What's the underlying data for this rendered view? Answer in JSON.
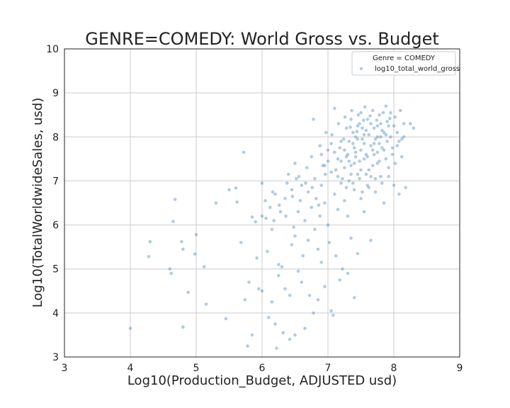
{
  "chart_data": {
    "type": "scatter",
    "title": "GENRE=COMEDY: World Gross vs. Budget",
    "xlabel": "Log10(Production_Budget, ADJUSTED usd)",
    "ylabel": "Log10(TotalWorldwideSales, usd)",
    "xlim": [
      3,
      9
    ],
    "ylim": [
      3,
      10
    ],
    "xticks": [
      "3",
      "4",
      "5",
      "6",
      "7",
      "8",
      "9"
    ],
    "yticks": [
      "3",
      "4",
      "5",
      "6",
      "7",
      "8",
      "9",
      "10"
    ],
    "grid": true,
    "legend": {
      "placement": "top-right",
      "title": "Genre = COMEDY",
      "entries": [
        "log10_total_world_gross"
      ]
    },
    "colors": {
      "point": "#3b7dbb",
      "grid": "#cccccc"
    },
    "series": [
      {
        "name": "log10_total_world_gross",
        "points": [
          [
            4.0,
            3.65
          ],
          [
            4.28,
            5.28
          ],
          [
            4.3,
            5.62
          ],
          [
            4.6,
            5.0
          ],
          [
            4.62,
            4.9
          ],
          [
            4.65,
            6.08
          ],
          [
            4.68,
            6.58
          ],
          [
            4.78,
            5.62
          ],
          [
            4.8,
            3.68
          ],
          [
            4.8,
            5.45
          ],
          [
            4.88,
            4.47
          ],
          [
            4.98,
            5.34
          ],
          [
            5.0,
            5.78
          ],
          [
            5.12,
            5.05
          ],
          [
            5.15,
            4.2
          ],
          [
            5.3,
            6.5
          ],
          [
            5.45,
            3.87
          ],
          [
            5.5,
            6.8
          ],
          [
            5.6,
            6.84
          ],
          [
            5.62,
            6.52
          ],
          [
            5.68,
            5.6
          ],
          [
            5.72,
            7.65
          ],
          [
            5.74,
            4.3
          ],
          [
            5.78,
            3.25
          ],
          [
            5.8,
            4.7
          ],
          [
            5.85,
            6.18
          ],
          [
            5.85,
            3.5
          ],
          [
            5.9,
            6.07
          ],
          [
            5.92,
            5.25
          ],
          [
            5.95,
            4.55
          ],
          [
            6.0,
            6.2
          ],
          [
            6.0,
            4.5
          ],
          [
            6.0,
            6.95
          ],
          [
            6.05,
            6.55
          ],
          [
            6.08,
            5.4
          ],
          [
            6.1,
            3.9
          ],
          [
            6.12,
            6.4
          ],
          [
            6.15,
            4.25
          ],
          [
            6.15,
            5.9
          ],
          [
            6.18,
            6.1
          ],
          [
            6.2,
            6.7
          ],
          [
            6.2,
            3.75
          ],
          [
            6.22,
            3.2
          ],
          [
            6.25,
            5.1
          ],
          [
            6.25,
            4.85
          ],
          [
            6.28,
            6.3
          ],
          [
            6.3,
            5.05
          ],
          [
            6.32,
            3.55
          ],
          [
            6.35,
            6.6
          ],
          [
            6.35,
            4.55
          ],
          [
            6.38,
            6.95
          ],
          [
            6.4,
            7.15
          ],
          [
            6.42,
            3.4
          ],
          [
            6.42,
            4.4
          ],
          [
            6.45,
            5.55
          ],
          [
            6.45,
            6.8
          ],
          [
            6.48,
            5.95
          ],
          [
            6.5,
            7.4
          ],
          [
            6.5,
            3.5
          ],
          [
            6.5,
            5.75
          ],
          [
            6.52,
            7.05
          ],
          [
            6.55,
            6.3
          ],
          [
            6.55,
            4.95
          ],
          [
            6.58,
            6.55
          ],
          [
            6.6,
            4.7
          ],
          [
            6.6,
            6.9
          ],
          [
            6.62,
            5.3
          ],
          [
            6.65,
            3.65
          ],
          [
            6.65,
            6.1
          ],
          [
            6.68,
            7.3
          ],
          [
            6.7,
            5.65
          ],
          [
            6.7,
            6.75
          ],
          [
            6.72,
            4.4
          ],
          [
            6.75,
            6.4
          ],
          [
            6.75,
            7.55
          ],
          [
            6.78,
            4.0
          ],
          [
            6.78,
            8.4
          ],
          [
            6.8,
            5.9
          ],
          [
            6.8,
            7.05
          ],
          [
            6.82,
            6.6
          ],
          [
            6.85,
            4.3
          ],
          [
            6.85,
            5.45
          ],
          [
            6.88,
            6.2
          ],
          [
            6.88,
            7.8
          ],
          [
            6.9,
            6.9
          ],
          [
            6.9,
            5.15
          ],
          [
            6.92,
            7.35
          ],
          [
            6.95,
            6.5
          ],
          [
            6.95,
            4.6
          ],
          [
            6.97,
            8.1
          ],
          [
            7.0,
            7.7
          ],
          [
            7.0,
            6.0
          ],
          [
            7.02,
            5.6
          ],
          [
            7.05,
            4.05
          ],
          [
            7.05,
            7.2
          ],
          [
            7.08,
            3.95
          ],
          [
            7.1,
            6.7
          ],
          [
            7.1,
            8.65
          ],
          [
            7.12,
            5.3
          ],
          [
            7.15,
            7.5
          ],
          [
            7.15,
            6.35
          ],
          [
            7.18,
            4.75
          ],
          [
            7.2,
            7.9
          ],
          [
            7.2,
            6.95
          ],
          [
            7.22,
            5.0
          ],
          [
            7.25,
            7.3
          ],
          [
            7.25,
            6.55
          ],
          [
            7.28,
            8.2
          ],
          [
            7.3,
            4.9
          ],
          [
            7.3,
            7.6
          ],
          [
            7.3,
            6.2
          ],
          [
            7.32,
            7.0
          ],
          [
            7.35,
            5.7
          ],
          [
            7.35,
            8.4
          ],
          [
            7.38,
            7.85
          ],
          [
            7.4,
            4.35
          ],
          [
            7.4,
            6.8
          ],
          [
            7.4,
            7.4
          ],
          [
            7.42,
            8.0
          ],
          [
            7.45,
            5.35
          ],
          [
            7.45,
            7.15
          ],
          [
            7.48,
            8.3
          ],
          [
            7.5,
            7.7
          ],
          [
            7.5,
            6.6
          ],
          [
            7.5,
            8.55
          ],
          [
            7.52,
            7.95
          ],
          [
            7.55,
            6.3
          ],
          [
            7.55,
            7.5
          ],
          [
            7.58,
            8.15
          ],
          [
            7.6,
            6.9
          ],
          [
            7.6,
            8.4
          ],
          [
            7.62,
            7.25
          ],
          [
            7.65,
            7.8
          ],
          [
            7.65,
            5.65
          ],
          [
            7.68,
            8.6
          ],
          [
            7.7,
            7.6
          ],
          [
            7.7,
            8.2
          ],
          [
            7.72,
            6.75
          ],
          [
            7.75,
            8.0
          ],
          [
            7.75,
            7.4
          ],
          [
            7.78,
            8.5
          ],
          [
            7.8,
            7.1
          ],
          [
            7.8,
            8.3
          ],
          [
            7.82,
            7.75
          ],
          [
            7.85,
            6.5
          ],
          [
            7.85,
            8.1
          ],
          [
            7.88,
            8.7
          ],
          [
            7.9,
            7.9
          ],
          [
            7.9,
            8.35
          ],
          [
            7.92,
            7.3
          ],
          [
            7.95,
            8.0
          ],
          [
            7.95,
            8.55
          ],
          [
            7.98,
            7.6
          ],
          [
            8.0,
            8.25
          ],
          [
            8.0,
            6.9
          ],
          [
            8.02,
            8.45
          ],
          [
            8.05,
            7.8
          ],
          [
            8.05,
            8.1
          ],
          [
            8.08,
            6.7
          ],
          [
            8.1,
            8.6
          ],
          [
            8.12,
            7.95
          ],
          [
            8.15,
            8.3
          ],
          [
            8.18,
            6.85
          ],
          [
            8.25,
            8.3
          ],
          [
            8.3,
            8.2
          ],
          [
            7.25,
            7.7
          ],
          [
            7.28,
            7.55
          ],
          [
            7.32,
            7.9
          ],
          [
            7.35,
            7.35
          ],
          [
            7.38,
            8.1
          ],
          [
            7.42,
            7.65
          ],
          [
            7.45,
            7.95
          ],
          [
            7.48,
            7.45
          ],
          [
            7.52,
            8.2
          ],
          [
            7.55,
            7.85
          ],
          [
            7.58,
            7.6
          ],
          [
            7.62,
            8.05
          ],
          [
            7.65,
            8.3
          ],
          [
            7.68,
            7.7
          ],
          [
            7.72,
            7.95
          ],
          [
            7.75,
            8.25
          ],
          [
            7.78,
            7.85
          ],
          [
            7.82,
            8.15
          ],
          [
            7.85,
            7.7
          ],
          [
            7.88,
            8.05
          ],
          [
            7.92,
            8.25
          ],
          [
            7.35,
            7.15
          ],
          [
            7.4,
            7.75
          ],
          [
            7.45,
            8.25
          ],
          [
            7.5,
            7.25
          ],
          [
            7.55,
            8.05
          ],
          [
            7.6,
            7.55
          ],
          [
            7.65,
            7.1
          ],
          [
            7.7,
            7.85
          ],
          [
            7.75,
            7.65
          ],
          [
            7.8,
            8.0
          ],
          [
            7.1,
            7.65
          ],
          [
            7.15,
            7.1
          ],
          [
            7.2,
            7.45
          ],
          [
            7.05,
            7.85
          ],
          [
            6.95,
            7.35
          ],
          [
            6.9,
            7.6
          ],
          [
            7.0,
            7.45
          ],
          [
            7.12,
            7.25
          ],
          [
            7.18,
            7.75
          ],
          [
            7.22,
            7.05
          ],
          [
            7.28,
            6.85
          ],
          [
            7.32,
            7.45
          ],
          [
            7.38,
            6.95
          ],
          [
            7.42,
            7.55
          ],
          [
            7.48,
            7.05
          ],
          [
            7.52,
            6.75
          ],
          [
            7.58,
            7.15
          ],
          [
            7.62,
            6.85
          ],
          [
            7.68,
            7.35
          ],
          [
            7.72,
            7.05
          ],
          [
            7.78,
            7.45
          ],
          [
            7.82,
            6.95
          ],
          [
            7.88,
            7.5
          ],
          [
            7.92,
            7.1
          ],
          [
            7.98,
            7.75
          ],
          [
            8.02,
            7.4
          ],
          [
            8.08,
            7.9
          ],
          [
            8.12,
            7.55
          ],
          [
            8.15,
            8.0
          ],
          [
            7.46,
            8.5
          ],
          [
            7.56,
            8.68
          ],
          [
            7.36,
            8.6
          ],
          [
            7.26,
            8.45
          ],
          [
            7.16,
            8.3
          ],
          [
            7.06,
            8.05
          ],
          [
            6.96,
            7.15
          ],
          [
            6.86,
            6.45
          ],
          [
            6.76,
            6.85
          ],
          [
            6.66,
            6.95
          ],
          [
            6.56,
            7.1
          ],
          [
            6.46,
            6.65
          ],
          [
            6.36,
            6.2
          ],
          [
            6.26,
            6.45
          ],
          [
            6.16,
            6.75
          ],
          [
            6.06,
            6.15
          ],
          [
            7.64,
            8.48
          ],
          [
            7.74,
            8.38
          ],
          [
            7.84,
            8.55
          ],
          [
            7.94,
            8.42
          ],
          [
            7.54,
            8.38
          ],
          [
            7.44,
            8.12
          ],
          [
            7.34,
            8.22
          ],
          [
            7.24,
            7.95
          ]
        ]
      }
    ]
  }
}
